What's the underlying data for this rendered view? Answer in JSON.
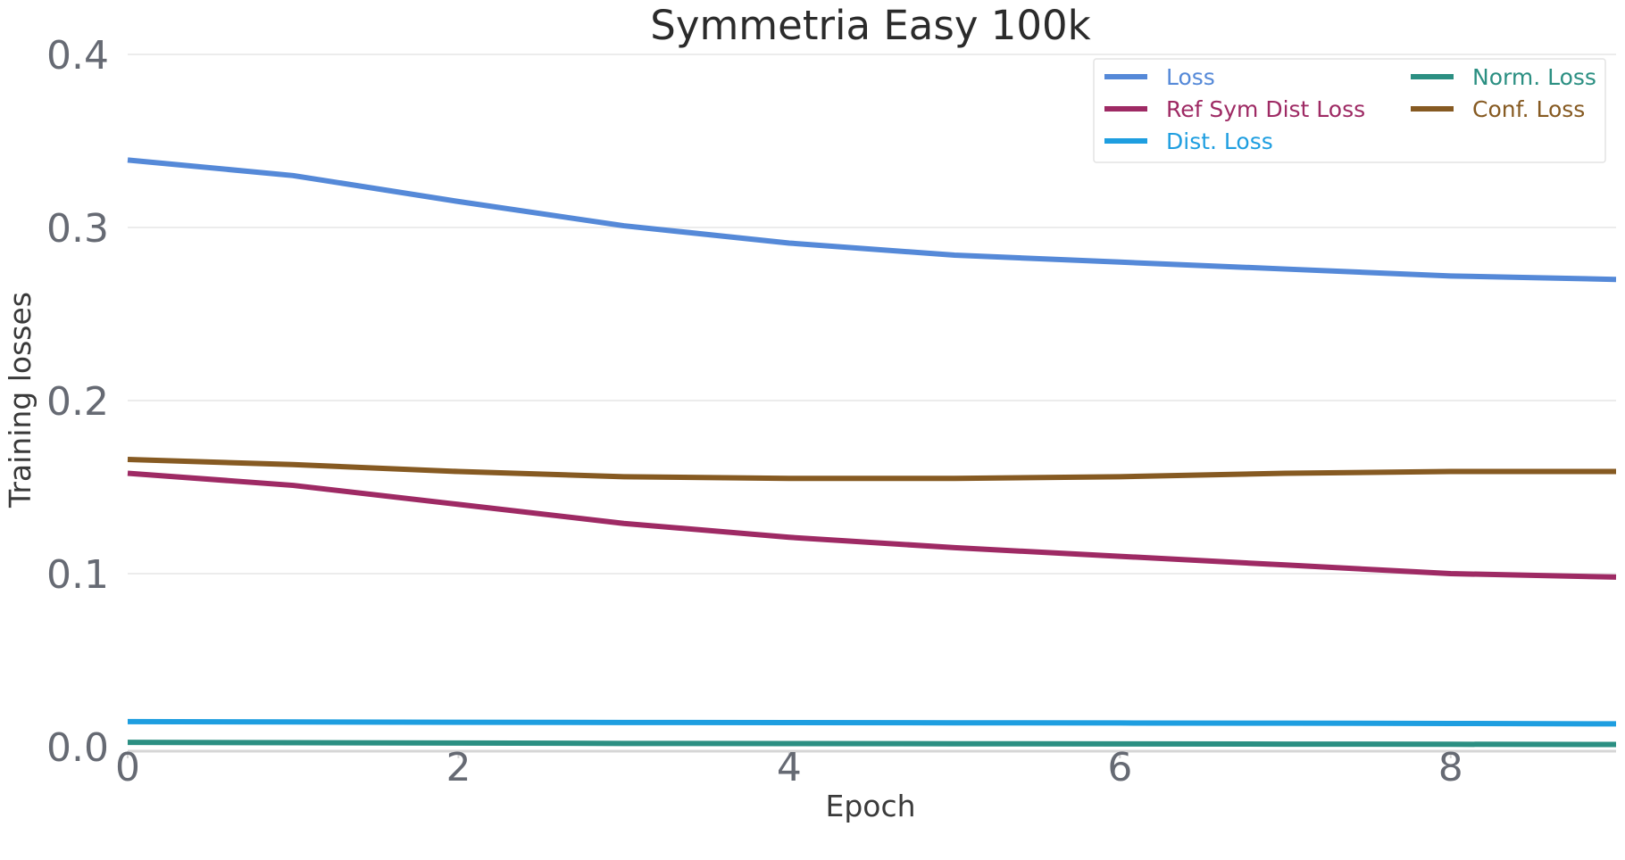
{
  "chart_data": {
    "type": "line",
    "title": "Symmetria Easy 100k",
    "xlabel": "Epoch",
    "ylabel": "Training losses",
    "xlim": [
      0,
      9
    ],
    "ylim": [
      0,
      0.4
    ],
    "xticks": [
      0,
      2,
      4,
      6,
      8
    ],
    "yticks": [
      0.0,
      0.1,
      0.2,
      0.3,
      0.4
    ],
    "xtick_labels": [
      "0",
      "2",
      "4",
      "6",
      "8"
    ],
    "ytick_labels": [
      "0.0",
      "0.1",
      "0.2",
      "0.3",
      "0.4"
    ],
    "grid": "horizontal",
    "legend": "top-right",
    "x": [
      0,
      1,
      2,
      3,
      4,
      5,
      6,
      7,
      8,
      9
    ],
    "series": [
      {
        "name": "Loss",
        "color": "#5589d8",
        "values": [
          0.339,
          0.33,
          0.315,
          0.301,
          0.291,
          0.284,
          0.28,
          0.276,
          0.272,
          0.27
        ]
      },
      {
        "name": "Ref Sym Dist Loss",
        "color": "#9e2a64",
        "values": [
          0.158,
          0.151,
          0.14,
          0.129,
          0.121,
          0.115,
          0.11,
          0.105,
          0.1,
          0.098
        ]
      },
      {
        "name": "Dist. Loss",
        "color": "#1e9ee0",
        "values": [
          0.0145,
          0.0143,
          0.0141,
          0.014,
          0.0139,
          0.0138,
          0.0137,
          0.0136,
          0.0134,
          0.0132
        ]
      },
      {
        "name": "Norm. Loss",
        "color": "#2b8f82",
        "values": [
          0.0025,
          0.0023,
          0.0021,
          0.0019,
          0.0018,
          0.0017,
          0.0016,
          0.0015,
          0.0014,
          0.0013
        ]
      },
      {
        "name": "Conf. Loss",
        "color": "#865a22",
        "values": [
          0.166,
          0.163,
          0.159,
          0.156,
          0.155,
          0.155,
          0.156,
          0.158,
          0.159,
          0.159
        ]
      }
    ]
  }
}
